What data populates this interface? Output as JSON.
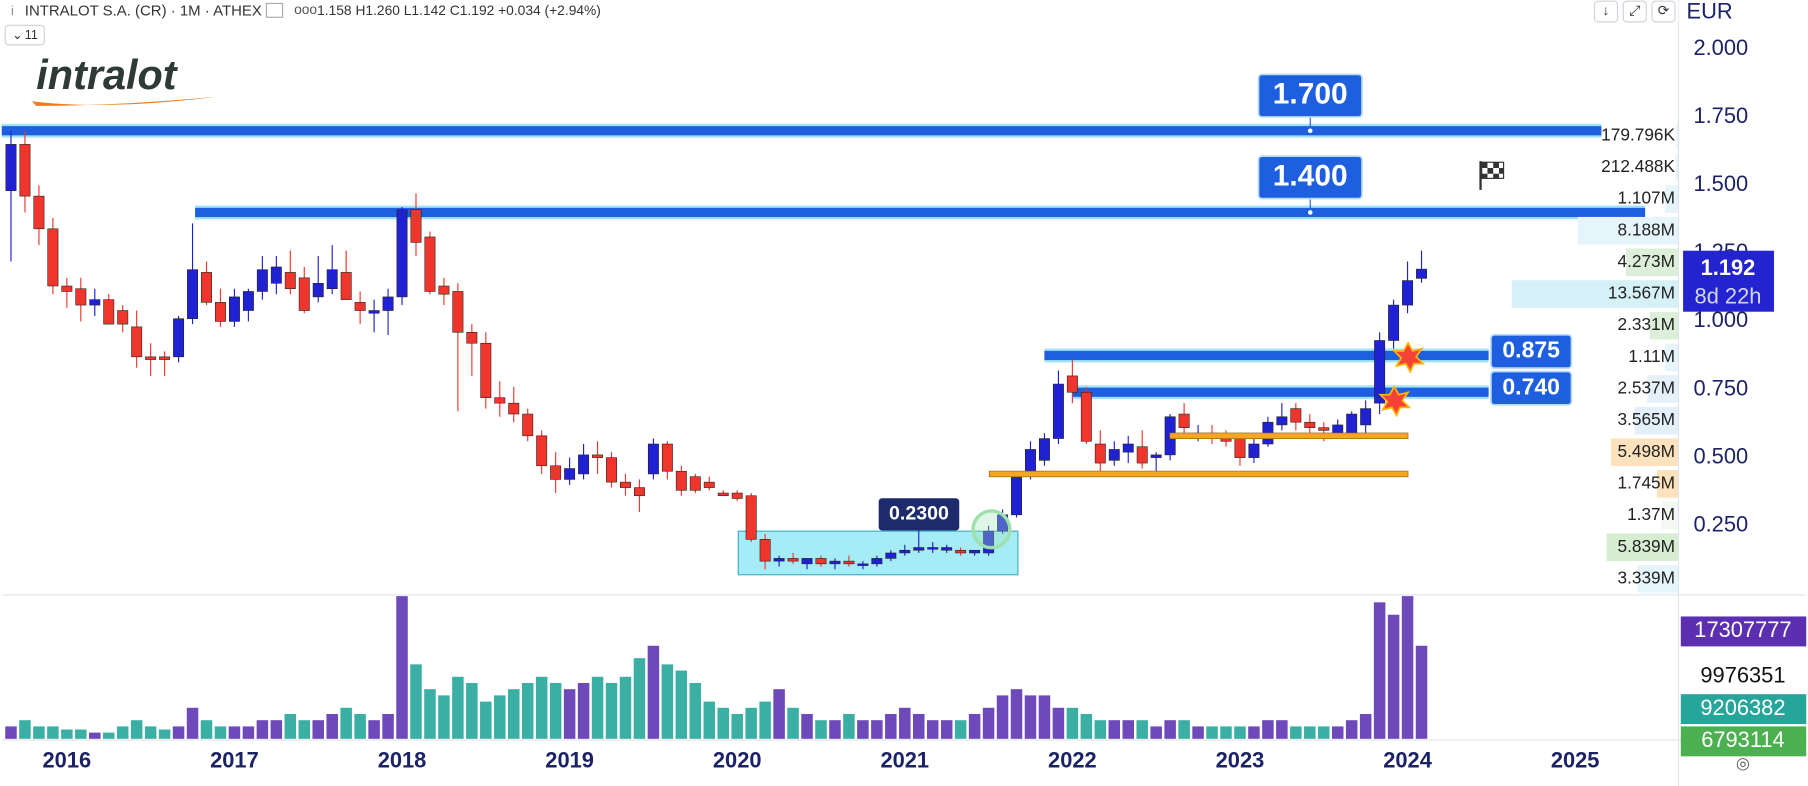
{
  "header": {
    "symbol": "INTRALOT S.A. (CR) · 1M · ATHEX",
    "legend": "1.158 H1.260 L1.142 C1.192 +0.034 (+2.94%)",
    "indicators": "11"
  },
  "logo": "intralot",
  "chart_data": {
    "type": "candlestick",
    "currency": "EUR",
    "open": [
      1.48,
      1.65,
      1.46,
      1.34,
      1.13,
      1.12,
      1.06,
      1.08,
      1.04,
      0.98,
      0.87,
      0.87,
      0.87,
      1.01,
      1.18,
      1.07,
      1.0,
      1.04,
      1.11,
      1.14,
      1.18,
      1.16,
      1.09,
      1.12,
      1.18,
      1.07,
      1.03,
      1.04,
      1.09,
      1.41,
      1.31,
      1.13,
      1.11,
      0.96,
      0.92,
      0.72,
      0.7,
      0.66,
      0.58,
      0.47,
      0.42,
      0.44,
      0.51,
      0.5,
      0.41,
      0.39,
      0.44,
      0.55,
      0.45,
      0.43,
      0.41,
      0.37,
      0.37,
      0.36,
      0.2,
      0.12,
      0.13,
      0.11,
      0.13,
      0.11,
      0.12,
      0.11,
      0.11,
      0.13,
      0.15,
      0.16,
      0.17,
      0.16,
      0.16,
      0.15,
      0.15,
      0.23,
      0.29,
      0.43,
      0.49,
      0.57,
      0.8,
      0.74,
      0.55,
      0.49,
      0.52,
      0.54,
      0.5,
      0.51,
      0.66,
      0.58,
      0.59,
      0.57,
      0.57,
      0.5,
      0.55,
      0.62,
      0.68,
      0.63,
      0.61,
      0.58,
      0.59,
      0.62,
      0.7,
      0.93,
      1.06,
      1.158
    ],
    "high": [
      1.7,
      1.7,
      1.5,
      1.38,
      1.16,
      1.16,
      1.12,
      1.1,
      1.06,
      1.04,
      0.92,
      0.89,
      1.02,
      1.36,
      1.22,
      1.12,
      1.12,
      1.12,
      1.24,
      1.24,
      1.26,
      1.2,
      1.24,
      1.28,
      1.26,
      1.11,
      1.08,
      1.12,
      1.42,
      1.47,
      1.33,
      1.16,
      1.14,
      0.99,
      0.96,
      0.78,
      0.76,
      0.68,
      0.6,
      0.52,
      0.5,
      0.55,
      0.56,
      0.52,
      0.44,
      0.42,
      0.57,
      0.56,
      0.47,
      0.44,
      0.43,
      0.38,
      0.38,
      0.37,
      0.22,
      0.14,
      0.15,
      0.13,
      0.14,
      0.13,
      0.14,
      0.12,
      0.14,
      0.16,
      0.18,
      0.23,
      0.19,
      0.18,
      0.17,
      0.16,
      0.25,
      0.31,
      0.44,
      0.56,
      0.59,
      0.82,
      0.86,
      0.76,
      0.6,
      0.56,
      0.58,
      0.6,
      0.52,
      0.66,
      0.7,
      0.62,
      0.62,
      0.6,
      0.58,
      0.58,
      0.65,
      0.7,
      0.7,
      0.66,
      0.63,
      0.64,
      0.67,
      0.71,
      0.96,
      1.08,
      1.22,
      1.26
    ],
    "low": [
      1.22,
      1.4,
      1.28,
      1.1,
      1.05,
      1.0,
      1.02,
      0.99,
      0.96,
      0.83,
      0.8,
      0.8,
      0.85,
      0.99,
      1.06,
      0.98,
      0.98,
      1.0,
      1.08,
      1.1,
      1.1,
      1.03,
      1.07,
      1.1,
      1.1,
      0.99,
      0.96,
      0.95,
      1.06,
      1.24,
      1.1,
      1.06,
      0.67,
      0.8,
      0.68,
      0.65,
      0.63,
      0.56,
      0.44,
      0.37,
      0.4,
      0.42,
      0.44,
      0.39,
      0.36,
      0.3,
      0.42,
      0.42,
      0.36,
      0.37,
      0.38,
      0.36,
      0.34,
      0.19,
      0.09,
      0.1,
      0.11,
      0.09,
      0.1,
      0.09,
      0.1,
      0.09,
      0.1,
      0.12,
      0.14,
      0.15,
      0.15,
      0.15,
      0.14,
      0.14,
      0.14,
      0.22,
      0.28,
      0.42,
      0.47,
      0.55,
      0.7,
      0.55,
      0.45,
      0.47,
      0.48,
      0.46,
      0.44,
      0.49,
      0.59,
      0.56,
      0.55,
      0.54,
      0.47,
      0.48,
      0.54,
      0.6,
      0.6,
      0.58,
      0.56,
      0.57,
      0.58,
      0.59,
      0.66,
      0.9,
      1.03,
      1.142
    ],
    "close": [
      1.65,
      1.46,
      1.34,
      1.13,
      1.11,
      1.06,
      1.08,
      0.99,
      0.99,
      0.87,
      0.86,
      0.86,
      1.01,
      1.19,
      1.07,
      1.0,
      1.09,
      1.11,
      1.19,
      1.2,
      1.12,
      1.04,
      1.14,
      1.19,
      1.08,
      1.04,
      1.04,
      1.09,
      1.41,
      1.29,
      1.11,
      1.1,
      0.96,
      0.92,
      0.72,
      0.7,
      0.66,
      0.58,
      0.47,
      0.42,
      0.46,
      0.51,
      0.5,
      0.41,
      0.39,
      0.36,
      0.55,
      0.45,
      0.38,
      0.38,
      0.39,
      0.36,
      0.35,
      0.2,
      0.12,
      0.13,
      0.12,
      0.13,
      0.11,
      0.12,
      0.11,
      0.11,
      0.13,
      0.15,
      0.16,
      0.17,
      0.17,
      0.17,
      0.15,
      0.16,
      0.23,
      0.29,
      0.43,
      0.53,
      0.57,
      0.77,
      0.74,
      0.56,
      0.48,
      0.53,
      0.55,
      0.48,
      0.51,
      0.65,
      0.61,
      0.59,
      0.57,
      0.56,
      0.5,
      0.55,
      0.63,
      0.65,
      0.63,
      0.61,
      0.6,
      0.62,
      0.66,
      0.68,
      0.93,
      1.06,
      1.15,
      1.192
    ],
    "up_color": "#2121d4",
    "down_color": "#f0362c",
    "xlim": [
      -0.66,
      119.4
    ],
    "xticks": [
      {
        "value": 4,
        "label": "2016"
      },
      {
        "value": 16,
        "label": "2017"
      },
      {
        "value": 28,
        "label": "2018"
      },
      {
        "value": 40,
        "label": "2019"
      },
      {
        "value": 52,
        "label": "2020"
      },
      {
        "value": 64,
        "label": "2021"
      },
      {
        "value": 76,
        "label": "2022"
      },
      {
        "value": 88,
        "label": "2023"
      },
      {
        "value": 100,
        "label": "2024"
      },
      {
        "value": 112,
        "label": "2025"
      }
    ],
    "ylim": [
      0,
      2.18
    ],
    "yticks": [
      {
        "value": 2,
        "label": "2.000"
      },
      {
        "value": 1.75,
        "label": "1.750"
      },
      {
        "value": 1.5,
        "label": "1.500"
      },
      {
        "value": 1.25,
        "label": "1.250"
      },
      {
        "value": 1,
        "label": "1.000"
      },
      {
        "value": 0.75,
        "label": "0.750"
      },
      {
        "value": 0.5,
        "label": "0.500"
      },
      {
        "value": 0.25,
        "label": "0.250"
      }
    ],
    "grid": true,
    "levels": [
      {
        "value": 1.7,
        "label": "1.700"
      },
      {
        "value": 1.4,
        "label": "1.400"
      },
      {
        "value": 0.875,
        "label": "0.875"
      },
      {
        "value": 0.74,
        "label": "0.740"
      }
    ],
    "level_color": "#1e5fe0",
    "support_lines": {
      "values": [
        0.58,
        0.44
      ],
      "color": "#f5a623"
    },
    "range_box": {
      "label": "0.2300",
      "top": 0.23,
      "bottom": 0.07
    },
    "countdown": "8d 22h",
    "volume": {
      "values": [
        2000000,
        3000000,
        2000000,
        2000000,
        1500000,
        1500000,
        1000000,
        1000000,
        2000000,
        3000000,
        2000000,
        1500000,
        2000000,
        5000000,
        3000000,
        2000000,
        2000000,
        2000000,
        3000000,
        3000000,
        4000000,
        3000000,
        3000000,
        4000000,
        5000000,
        4000000,
        3000000,
        4000000,
        23000000,
        12000000,
        8000000,
        7000000,
        10000000,
        9000000,
        6000000,
        7000000,
        8000000,
        9000000,
        10000000,
        9000000,
        8000000,
        9000000,
        10000000,
        9000000,
        10000000,
        13000000,
        15000000,
        12000000,
        11000000,
        9000000,
        6000000,
        5000000,
        4000000,
        5000000,
        6000000,
        8000000,
        5000000,
        4000000,
        3000000,
        3000000,
        4000000,
        3000000,
        3000000,
        4000000,
        5000000,
        4000000,
        3000000,
        3000000,
        3000000,
        4000000,
        5000000,
        7000000,
        8000000,
        7000000,
        7000000,
        5000000,
        5000000,
        4000000,
        3000000,
        3000000,
        3000000,
        3000000,
        2000000,
        3000000,
        3000000,
        2000000,
        2000000,
        2000000,
        2000000,
        2000000,
        3000000,
        3000000,
        2000000,
        2000000,
        2000000,
        2000000,
        3000000,
        4000000,
        22000000,
        20000000,
        23000000,
        15000000
      ],
      "up_color": "#5e35b1",
      "down_color": "#26a69a",
      "ylim": [
        0,
        23000000
      ],
      "indicator_values": [
        17307777,
        9976351,
        9206382,
        6793114
      ],
      "indicator_colors": [
        "#5b2fb0",
        "#ffffff",
        "#26a69a",
        "#4caf50"
      ]
    },
    "volume_profile": {
      "values": [
        179796,
        212488,
        1107000,
        8188000,
        4273000,
        13567000,
        2331000,
        1110000,
        2537000,
        3565000,
        5498000,
        1745000,
        1370000,
        5839000,
        3339000
      ],
      "value_labels": [
        "179.796K",
        "212.488K",
        "1.107M",
        "8.188M",
        "4.273M",
        "13.567M",
        "2.331M",
        "1.11M",
        "2.537M",
        "3.565M",
        "5.498M",
        "1.745M",
        "1.37M",
        "5.839M",
        "3.339M"
      ],
      "colors": [
        "#e6f5fb",
        "#e6f5fb",
        "#e6f5fb",
        "#e6f5fb",
        "#dcefd8",
        "#d6f0f8",
        "#dcefd8",
        "#e6f5fb",
        "#e6f0fb",
        "#e3effb",
        "#fde2bd",
        "#fde2bd",
        "#f3f8f3",
        "#d6edd2",
        "#e6f5fb"
      ]
    }
  }
}
